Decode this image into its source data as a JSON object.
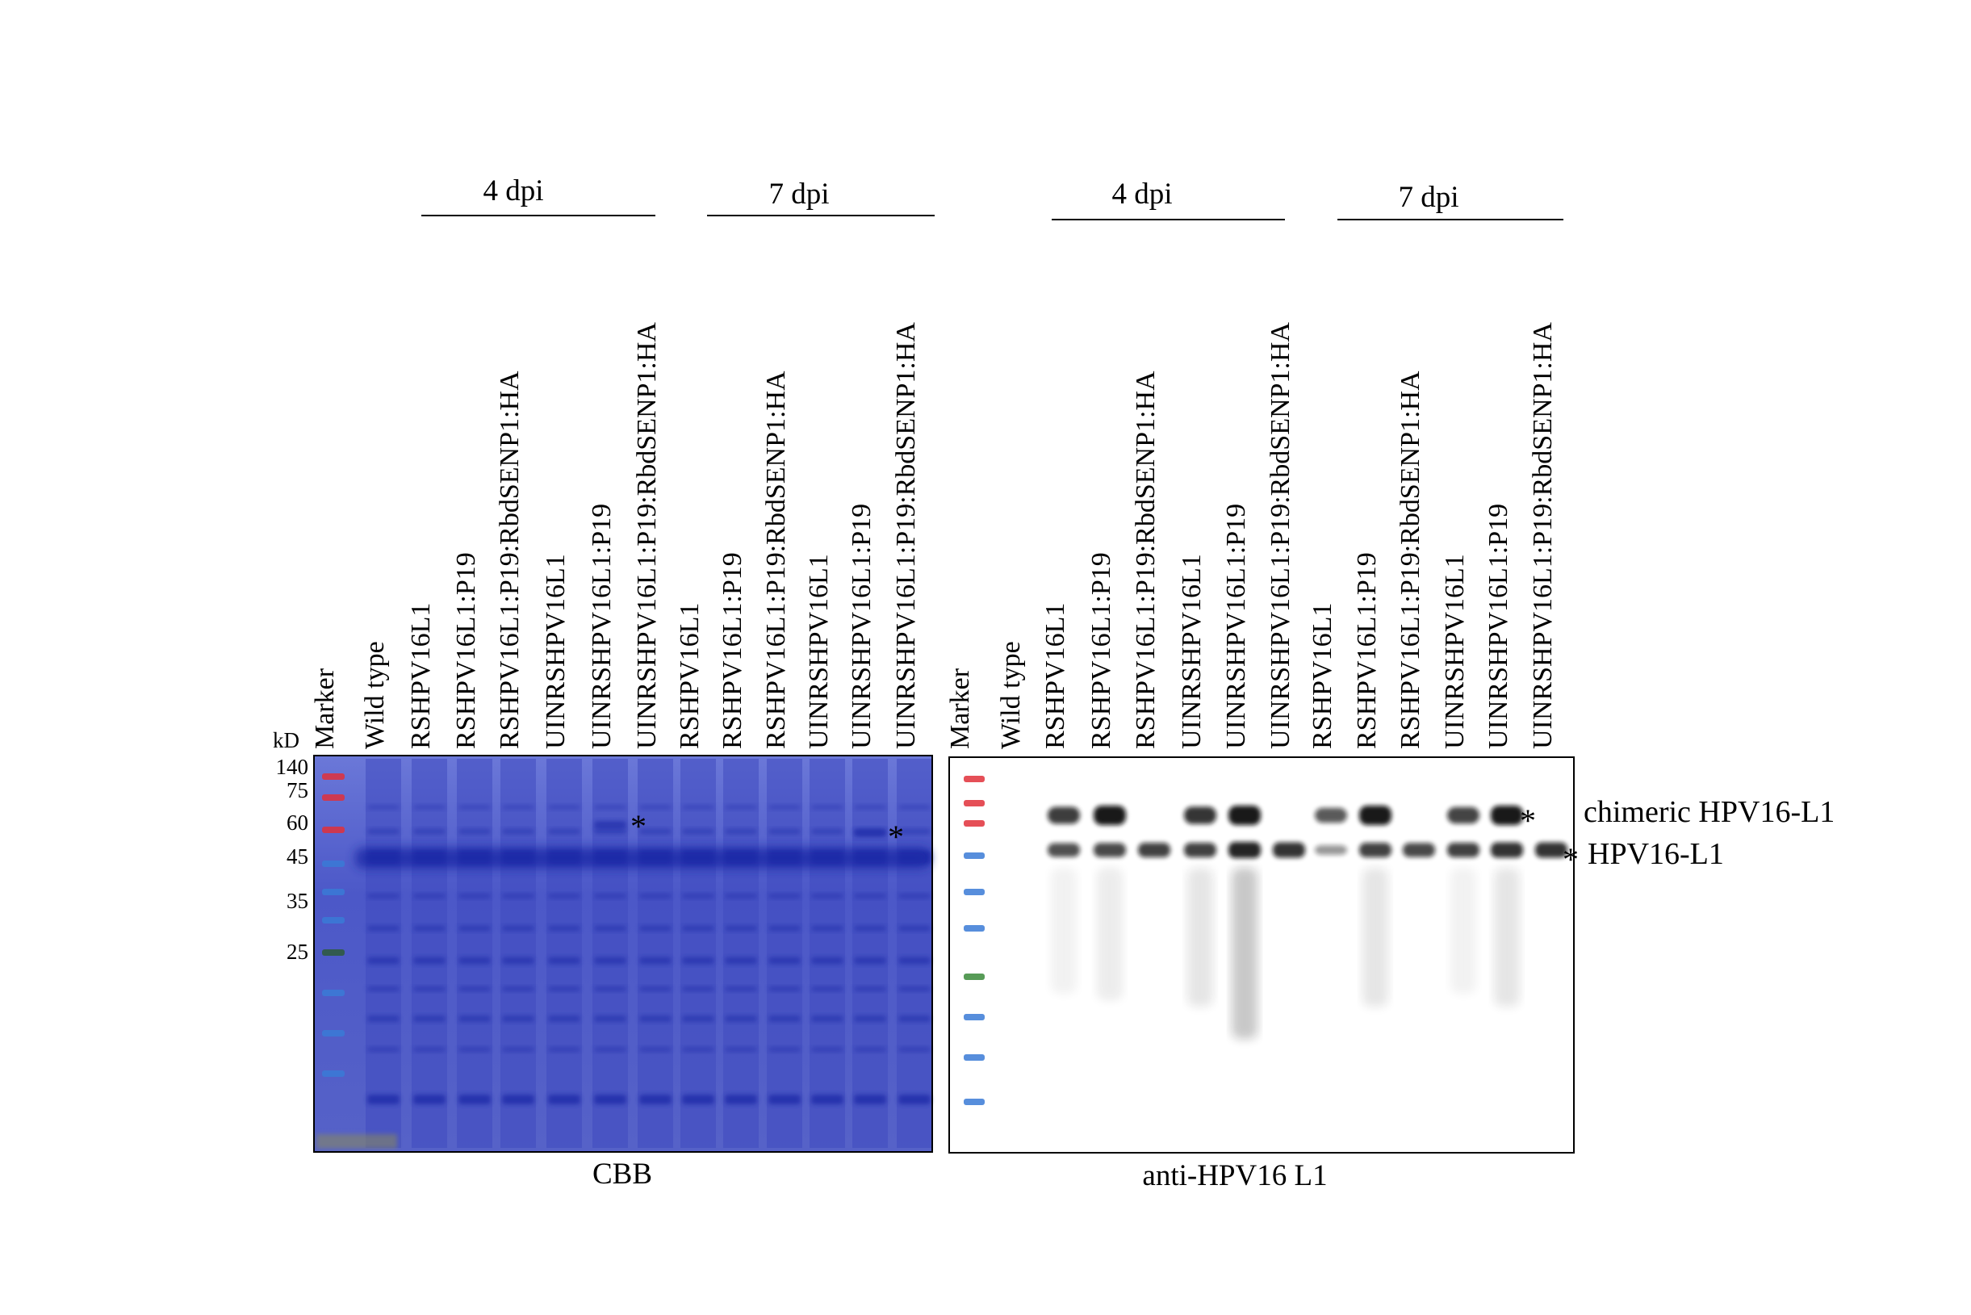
{
  "lanes": [
    "Marker",
    "Wild type",
    "RSHPV16L1",
    "RSHPV16L1:P19",
    "RSHPV16L1:P19:RbdSENP1:HA",
    "UINRSHPV16L1",
    "UINRSHPV16L1:P19",
    "UINRSHPV16L1:P19:RbdSENP1:HA",
    "RSHPV16L1",
    "RSHPV16L1:P19",
    "RSHPV16L1:P19:RbdSENP1:HA",
    "UINRSHPV16L1",
    "UINRSHPV16L1:P19",
    "UINRSHPV16L1:P19:RbdSENP1:HA"
  ],
  "groups": {
    "day4": "4 dpi",
    "day7": "7 dpi"
  },
  "marker": {
    "unit": "kD",
    "sizes": [
      "140",
      "75",
      "60",
      "45",
      "35",
      "25"
    ]
  },
  "panels": {
    "cbb": {
      "caption": "CBB"
    },
    "western": {
      "caption": "anti-HPV16 L1"
    }
  },
  "bands": {
    "chimeric": "chimeric HPV16-L1",
    "native": "HPV16-L1",
    "star": "*"
  },
  "colors": {
    "coomassie_bg": "#4a56c8",
    "coomassie_band": "#1d2aa8",
    "marker_red": "#e0303a",
    "marker_blue": "#3a7ad6",
    "marker_green": "#3a8a3a",
    "blot_band": "#111111"
  }
}
